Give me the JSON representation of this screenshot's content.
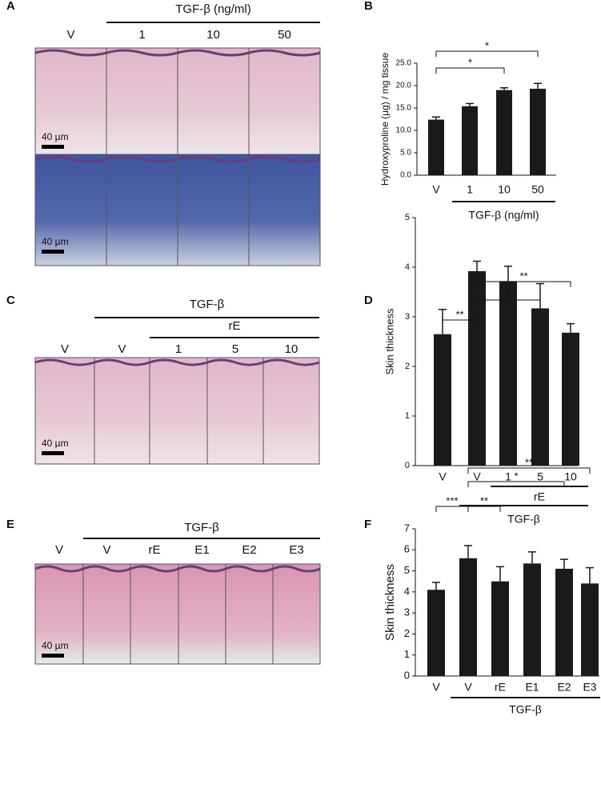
{
  "figure": {
    "panels": [
      {
        "letter": "A",
        "headers": [
          "TGF-β (ng/ml)"
        ],
        "lanes": [
          "V",
          "1",
          "10",
          "50"
        ],
        "scale": "40 µm"
      },
      {
        "letter": "C",
        "headers": [
          "TGF-β",
          "rE"
        ],
        "lanes": [
          "V",
          "V",
          "1",
          "5",
          "10"
        ],
        "scale": "40 µm"
      },
      {
        "letter": "E",
        "headers": [
          "TGF-β"
        ],
        "lanes": [
          "V",
          "V",
          "rE",
          "E1",
          "E2",
          "E3"
        ],
        "scale": "40 µm"
      }
    ]
  },
  "chart_data": [
    {
      "type": "bar",
      "label": "B",
      "y_label": "Hydroxyproline (µg) / mg tissue",
      "categories": [
        "V",
        "1",
        "10",
        "50"
      ],
      "values": [
        12.4,
        15.4,
        19.0,
        19.3
      ],
      "errors": [
        0.6,
        0.6,
        0.5,
        1.2
      ],
      "color": "#1a1a1a",
      "ylim": [
        0,
        25
      ],
      "yticks": [
        {
          "value": 0,
          "label": "0.0"
        },
        {
          "value": 5,
          "label": "5.0"
        },
        {
          "value": 10,
          "label": "10.0"
        },
        {
          "value": 15,
          "label": "15.0"
        },
        {
          "value": 20,
          "label": "20.0"
        },
        {
          "value": 25,
          "label": "25.0"
        }
      ],
      "groups": [
        {
          "label": "TGF-β (ng/ml)",
          "span": [
            1,
            3
          ]
        }
      ],
      "comparisons": [
        {
          "pair": [
            0,
            2
          ],
          "label": "*"
        },
        {
          "pair": [
            0,
            3
          ],
          "label": "*"
        }
      ]
    },
    {
      "type": "bar",
      "label": "D",
      "y_label": "Skin thickness",
      "categories": [
        "V",
        "V",
        "1",
        "5",
        "10"
      ],
      "values": [
        2.65,
        3.92,
        3.72,
        3.17,
        2.68
      ],
      "errors": [
        0.5,
        0.2,
        0.3,
        0.5,
        0.18
      ],
      "color": "#1a1a1a",
      "ylim": [
        0,
        5
      ],
      "yticks": [
        0,
        1,
        2,
        3,
        4,
        5
      ],
      "groups": [
        {
          "label": "rE",
          "span": [
            2,
            4
          ]
        },
        {
          "label": "TGF-β",
          "span": [
            1,
            4
          ]
        }
      ],
      "comparisons": [
        {
          "pair": [
            0,
            1
          ],
          "label": "**"
        },
        {
          "pair": [
            1,
            3
          ],
          "label": "*"
        },
        {
          "pair": [
            1,
            4
          ],
          "label": "**"
        }
      ]
    },
    {
      "type": "bar",
      "label": "F",
      "y_label": "Skin thickness",
      "categories": [
        "V",
        "V",
        "rE",
        "E1",
        "E2",
        "E3"
      ],
      "values": [
        4.1,
        5.6,
        4.5,
        5.35,
        5.1,
        4.4
      ],
      "errors": [
        0.35,
        0.6,
        0.7,
        0.55,
        0.45,
        0.75
      ],
      "color": "#1a1a1a",
      "ylim": [
        0,
        7
      ],
      "yticks": [
        0,
        1,
        2,
        3,
        4,
        5,
        6,
        7
      ],
      "groups": [
        {
          "label": "TGF-β",
          "span": [
            1,
            5
          ]
        }
      ],
      "comparisons": [
        {
          "pair": [
            0,
            1
          ],
          "label": "***"
        },
        {
          "pair": [
            1,
            2
          ],
          "label": "**"
        },
        {
          "pair": [
            1,
            4
          ],
          "label": "*"
        },
        {
          "pair": [
            1,
            5
          ],
          "label": "**"
        }
      ]
    }
  ]
}
